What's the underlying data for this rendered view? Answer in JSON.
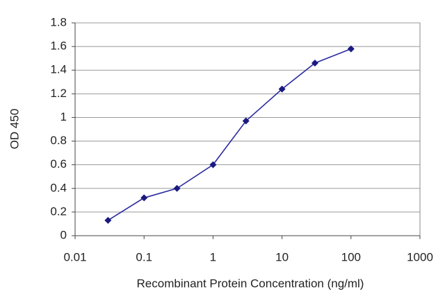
{
  "chart_data": {
    "type": "line",
    "xlabel": "Recombinant Protein Concentration (ng/ml)",
    "ylabel": "OD 450",
    "x": [
      0.03,
      0.1,
      0.3,
      1,
      3,
      10,
      30,
      100
    ],
    "values": [
      0.13,
      0.32,
      0.4,
      0.6,
      0.97,
      1.24,
      1.46,
      1.58
    ],
    "color": "#2b2ba0",
    "xscale": "log",
    "xlim": [
      0.01,
      1000
    ],
    "xticks": [
      0.01,
      0.1,
      1,
      10,
      100,
      1000
    ],
    "ylim": [
      0,
      1.8
    ],
    "yticks": [
      0,
      0.2,
      0.4,
      0.6,
      0.8,
      1,
      1.2,
      1.4,
      1.6,
      1.8
    ],
    "grid": true
  }
}
